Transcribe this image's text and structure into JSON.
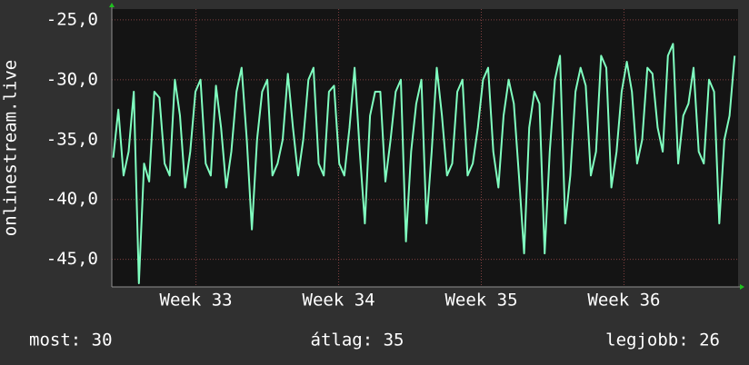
{
  "chart_data": {
    "type": "line",
    "y_label": "onlinestream.live",
    "x": [
      32.42,
      32.456,
      32.492,
      32.528,
      32.564,
      32.6,
      32.636,
      32.672,
      32.708,
      32.744,
      32.78,
      32.816,
      32.852,
      32.888,
      32.924,
      32.96,
      32.996,
      33.032,
      33.068,
      33.104,
      33.14,
      33.176,
      33.212,
      33.248,
      33.284,
      33.32,
      33.356,
      33.392,
      33.428,
      33.464,
      33.5,
      33.536,
      33.572,
      33.608,
      33.644,
      33.68,
      33.716,
      33.752,
      33.788,
      33.824,
      33.86,
      33.896,
      33.932,
      33.968,
      34.004,
      34.04,
      34.076,
      34.112,
      34.148,
      34.184,
      34.22,
      34.256,
      34.292,
      34.328,
      34.364,
      34.4,
      34.436,
      34.472,
      34.508,
      34.544,
      34.58,
      34.616,
      34.652,
      34.688,
      34.724,
      34.76,
      34.796,
      34.832,
      34.868,
      34.904,
      34.94,
      34.976,
      35.012,
      35.048,
      35.084,
      35.12,
      35.156,
      35.192,
      35.228,
      35.264,
      35.3,
      35.336,
      35.372,
      35.408,
      35.444,
      35.48,
      35.516,
      35.552,
      35.588,
      35.624,
      35.66,
      35.696,
      35.732,
      35.768,
      35.804,
      35.84,
      35.876,
      35.912,
      35.948,
      35.984,
      36.02,
      36.056,
      36.092,
      36.128,
      36.164,
      36.2,
      36.236,
      36.272,
      36.308,
      36.344,
      36.38,
      36.416,
      36.452,
      36.488,
      36.524,
      36.56,
      36.596,
      36.632,
      36.668,
      36.704,
      36.74,
      36.776
    ],
    "series": [
      {
        "color": "#80ffc0",
        "values": [
          -36.5,
          -32.5,
          -38,
          -36,
          -31,
          -47,
          -37,
          -38.5,
          -31,
          -31.5,
          -37,
          -38,
          -30,
          -33,
          -39,
          -36,
          -31,
          -30,
          -37,
          -38,
          -30.5,
          -34,
          -39,
          -36,
          -31,
          -29,
          -35,
          -42.5,
          -35,
          -31,
          -30,
          -38,
          -37,
          -35,
          -29.5,
          -34,
          -38,
          -35,
          -30,
          -29,
          -37,
          -38,
          -31,
          -30.5,
          -37,
          -38,
          -34,
          -29,
          -36,
          -42,
          -33,
          -31,
          -31,
          -38.5,
          -35,
          -31,
          -30,
          -43.5,
          -36,
          -32,
          -30,
          -42,
          -36,
          -29,
          -33,
          -38,
          -37,
          -31,
          -30,
          -38,
          -37,
          -34,
          -30,
          -29,
          -36,
          -39,
          -33,
          -30,
          -32,
          -38,
          -44.5,
          -34,
          -31,
          -32,
          -44.5,
          -36,
          -30,
          -28,
          -42,
          -38,
          -31,
          -29,
          -30.5,
          -38,
          -36,
          -28,
          -29,
          -39,
          -36,
          -31,
          -28.5,
          -31,
          -37,
          -35,
          -29,
          -29.5,
          -34,
          -36,
          -28,
          -27,
          -37,
          -33,
          -32,
          -29,
          -36,
          -37,
          -30,
          -31,
          -42,
          -35,
          -33,
          -28
        ]
      }
    ],
    "xlim": [
      32.41,
      36.8
    ],
    "xticks": [
      {
        "value": 33,
        "label": "Week 33"
      },
      {
        "value": 34,
        "label": "Week 34"
      },
      {
        "value": 35,
        "label": "Week 35"
      },
      {
        "value": 36,
        "label": "Week 36"
      }
    ],
    "ylim": [
      -47.3,
      -24.1
    ],
    "yticks": [
      {
        "value": -25,
        "label": "-25,0"
      },
      {
        "value": -30,
        "label": "-30,0"
      },
      {
        "value": -35,
        "label": "-35,0"
      },
      {
        "value": -40,
        "label": "-40,0"
      },
      {
        "value": -45,
        "label": "-45,0"
      }
    ],
    "grid": true,
    "footer": [
      "most: 30",
      "átlag: 35",
      "legjobb: 26"
    ]
  }
}
